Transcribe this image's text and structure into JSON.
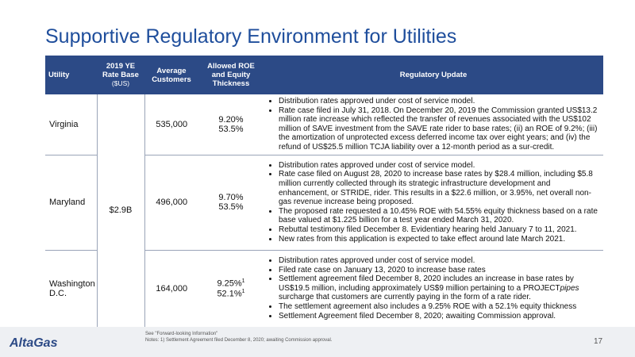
{
  "title": "Supportive Regulatory Environment for Utilities",
  "table": {
    "headers": [
      "Utility",
      "2019 YE Rate Base",
      "Average Customers",
      "Allowed ROE and Equity Thickness",
      "Regulatory Update"
    ],
    "header_unit": "($US)",
    "rate_base": "$2.9B",
    "rows": [
      {
        "utility": "Virginia",
        "customers": "535,000",
        "roe": "9.20%",
        "equity": "53.5%",
        "updates": [
          "Distribution rates approved under cost of service model.",
          "Rate case filed in July 31, 2018.  On December 20, 2019 the Commission granted US$13.2 million rate increase which reflected the transfer of revenues associated with the US$102 million of SAVE investment from the SAVE rate rider to base rates; (ii) an ROE of 9.2%; (iii) the amortization of unprotected excess deferred income tax over eight years; and (iv) the refund of US$25.5 million TCJA liability over a 12-month period as a sur-credit."
        ]
      },
      {
        "utility": "Maryland",
        "customers": "496,000",
        "roe": "9.70%",
        "equity": "53.5%",
        "updates": [
          "Distribution rates approved under cost of service model.",
          "Rate case filed on August 28, 2020 to increase base rates by $28.4 million, including $5.8 million currently collected through its strategic infrastructure development and enhancement, or STRIDE, rider. This results in a $22.6 million, or 3.95%, net overall non-gas revenue increase being proposed.",
          "The proposed rate requested a 10.45% ROE with 54.55% equity thickness based on a rate base valued at $1.225 billion for a test year ended March 31, 2020.",
          "Rebuttal testimony filed December 8.  Evidentiary hearing held January 7 to 11, 2021.",
          "New rates from this application is expected to take effect around late March 2021."
        ]
      },
      {
        "utility": "Washington D.C.",
        "customers": "164,000",
        "roe": "9.25%",
        "roe_note": "1",
        "equity": "52.1%",
        "equity_note": "1",
        "updates": [
          "Distribution rates approved under cost of service model.",
          "Filed rate case on January 13, 2020 to increase base rates",
          [
            "Settlement agreement filed December 8, 2020 includes an increase in base rates by US$19.5 million, including approximately US$9 million pertaining to a PROJECT",
            "pipes",
            " surcharge that customers are currently paying in the form of a rate rider."
          ],
          "The settlement agreement also includes a 9.25% ROE with a 52.1% equity thickness",
          "Settlement Agreement filed December 8, 2020; awaiting Commission approval."
        ]
      }
    ]
  },
  "footer": {
    "logo": "AltaGas",
    "see": "See \"Forward-looking Information\"",
    "notes": "Notes: 1) Settlement Agreement filed December 8, 2020; awaiting Commission approval.",
    "page": "17"
  }
}
